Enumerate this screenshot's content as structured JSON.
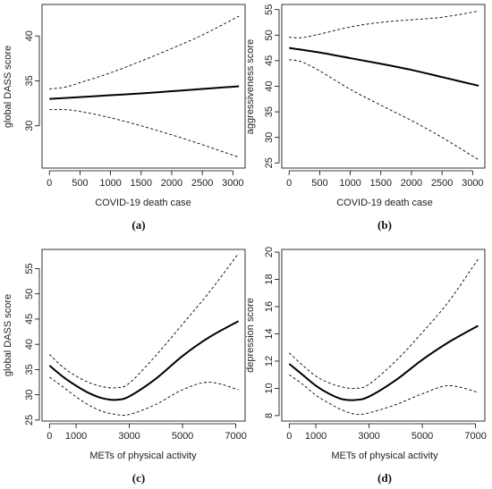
{
  "chart_data": [
    {
      "panel_label": "(a)",
      "type": "line",
      "xlabel": "COVID-19 death case",
      "ylabel": "global DASS score",
      "xlim": [
        -120,
        3200
      ],
      "ylim": [
        25.3,
        43.5
      ],
      "xticks": [
        0,
        500,
        1000,
        1500,
        2000,
        2500,
        3000
      ],
      "yticks": [
        30,
        35,
        40
      ],
      "series": [
        {
          "role": "fit",
          "x": [
            0,
            500,
            1000,
            1500,
            2000,
            2500,
            3100
          ],
          "values": [
            33.0,
            33.2,
            33.4,
            33.6,
            33.85,
            34.1,
            34.4
          ]
        },
        {
          "role": "ci-upper",
          "x": [
            0,
            250,
            500,
            1000,
            1500,
            2000,
            2500,
            3100
          ],
          "values": [
            34.1,
            34.3,
            34.8,
            35.9,
            37.2,
            38.6,
            40.1,
            42.2
          ]
        },
        {
          "role": "ci-lower",
          "x": [
            0,
            250,
            500,
            1000,
            1500,
            2000,
            2500,
            3100
          ],
          "values": [
            31.8,
            31.8,
            31.6,
            30.9,
            30.0,
            29.0,
            27.9,
            26.5
          ]
        }
      ]
    },
    {
      "panel_label": "(b)",
      "type": "line",
      "xlabel": "COVID-19 death case",
      "ylabel": "aggressiveness score",
      "xlim": [
        -120,
        3200
      ],
      "ylim": [
        24,
        56
      ],
      "xticks": [
        0,
        500,
        1000,
        1500,
        2000,
        2500,
        3000
      ],
      "yticks": [
        25,
        30,
        35,
        40,
        45,
        50,
        55
      ],
      "series": [
        {
          "role": "fit",
          "x": [
            0,
            500,
            1000,
            1500,
            2000,
            2500,
            3100
          ],
          "values": [
            47.5,
            46.6,
            45.5,
            44.4,
            43.2,
            41.8,
            40.1
          ]
        },
        {
          "role": "ci-upper",
          "x": [
            0,
            200,
            500,
            1000,
            1500,
            2000,
            2500,
            3100
          ],
          "values": [
            49.6,
            49.5,
            50.2,
            51.6,
            52.5,
            53.0,
            53.5,
            54.7
          ]
        },
        {
          "role": "ci-lower",
          "x": [
            0,
            200,
            500,
            1000,
            1500,
            2000,
            2500,
            3100
          ],
          "values": [
            45.2,
            44.8,
            43.0,
            39.4,
            36.3,
            33.3,
            30.0,
            25.6
          ]
        }
      ]
    },
    {
      "panel_label": "(c)",
      "type": "line",
      "xlabel": "METs of physical activity",
      "ylabel": "global DASS score",
      "xlim": [
        -280,
        7350
      ],
      "ylim": [
        24.8,
        58.8
      ],
      "xticks": [
        0,
        1000,
        3000,
        5000,
        7000
      ],
      "yticks": [
        25,
        30,
        35,
        40,
        45,
        50,
        55
      ],
      "series": [
        {
          "role": "fit",
          "x": [
            0,
            500,
            1000,
            1500,
            2000,
            2500,
            3000,
            4000,
            5000,
            6000,
            7100
          ],
          "values": [
            35.8,
            33.6,
            31.8,
            30.3,
            29.3,
            29.0,
            29.7,
            33.2,
            37.7,
            41.4,
            44.6
          ]
        },
        {
          "role": "ci-upper",
          "x": [
            0,
            500,
            1000,
            1500,
            2000,
            2500,
            3000,
            4000,
            5000,
            6000,
            7100
          ],
          "values": [
            38.0,
            35.5,
            33.7,
            32.4,
            31.6,
            31.4,
            32.3,
            37.8,
            44.0,
            50.3,
            58.0
          ]
        },
        {
          "role": "ci-lower",
          "x": [
            0,
            500,
            1000,
            1500,
            2000,
            2500,
            3000,
            4000,
            5000,
            6000,
            7100
          ],
          "values": [
            33.5,
            31.6,
            29.6,
            27.9,
            26.7,
            26.1,
            26.1,
            28.1,
            31.0,
            32.5,
            31.0
          ]
        }
      ]
    },
    {
      "panel_label": "(d)",
      "type": "line",
      "xlabel": "METs of physical activity",
      "ylabel": "depression score",
      "xlim": [
        -280,
        7350
      ],
      "ylim": [
        7.6,
        20.2
      ],
      "xticks": [
        0,
        1000,
        3000,
        5000,
        7000
      ],
      "yticks": [
        8,
        10,
        12,
        14,
        16,
        18,
        20
      ],
      "series": [
        {
          "role": "fit",
          "x": [
            0,
            500,
            1000,
            1500,
            2000,
            2500,
            3000,
            4000,
            5000,
            6000,
            7100
          ],
          "values": [
            11.8,
            11.0,
            10.2,
            9.6,
            9.2,
            9.15,
            9.4,
            10.6,
            12.1,
            13.4,
            14.6
          ]
        },
        {
          "role": "ci-upper",
          "x": [
            0,
            500,
            1000,
            1500,
            2000,
            2500,
            3000,
            4000,
            5000,
            6000,
            7100
          ],
          "values": [
            12.6,
            11.7,
            10.9,
            10.4,
            10.1,
            10.0,
            10.3,
            12.0,
            14.1,
            16.4,
            19.5
          ]
        },
        {
          "role": "ci-lower",
          "x": [
            0,
            500,
            1000,
            1500,
            2000,
            2500,
            3000,
            4000,
            5000,
            6000,
            7100
          ],
          "values": [
            11.0,
            10.3,
            9.5,
            8.9,
            8.4,
            8.1,
            8.2,
            8.8,
            9.6,
            10.2,
            9.7
          ]
        }
      ]
    }
  ]
}
